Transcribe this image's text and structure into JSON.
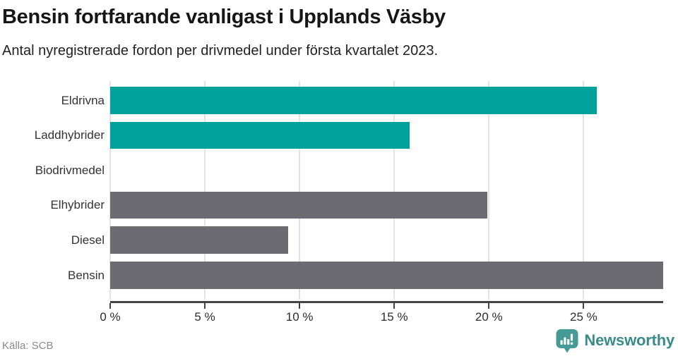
{
  "header": {
    "title": "Bensin fortfarande vanligast i Upplands Väsby",
    "subtitle": "Antal nyregistrerade fordon per drivmedel under första kvartalet 2023."
  },
  "chart_data": {
    "type": "bar",
    "orientation": "horizontal",
    "title": "Bensin fortfarande vanligast i Upplands Väsby",
    "subtitle": "Antal nyregistrerade fordon per drivmedel under första kvartalet 2023.",
    "categories": [
      "Eldrivna",
      "Laddhybrider",
      "Biodrivmedel",
      "Elhybrider",
      "Diesel",
      "Bensin"
    ],
    "values": [
      25.7,
      15.8,
      0,
      19.9,
      9.4,
      29.2
    ],
    "unit": "%",
    "bar_colors": [
      "#00a29b",
      "#00a29b",
      "#00a29b",
      "#6c6b71",
      "#6c6b71",
      "#6c6b71"
    ],
    "xlim": [
      0,
      29.2
    ],
    "x_ticks": [
      0,
      5,
      10,
      15,
      20,
      25
    ],
    "x_tick_labels": [
      "0 %",
      "5 %",
      "10 %",
      "15 %",
      "20 %",
      "25 %"
    ],
    "grid": "vertical-only",
    "legend": "none",
    "xlabel": "",
    "ylabel": ""
  },
  "footer": {
    "source": "Källa: SCB",
    "brand": "Newsworthy"
  },
  "colors": {
    "accent_teal": "#00a29b",
    "neutral_gray": "#6c6b71",
    "gridline": "#e3e3e3",
    "axis": "#454545",
    "brand_teal": "#398c88"
  },
  "icons": {
    "brand_logo": "newsworthy-speech-bubble-chart-icon"
  }
}
